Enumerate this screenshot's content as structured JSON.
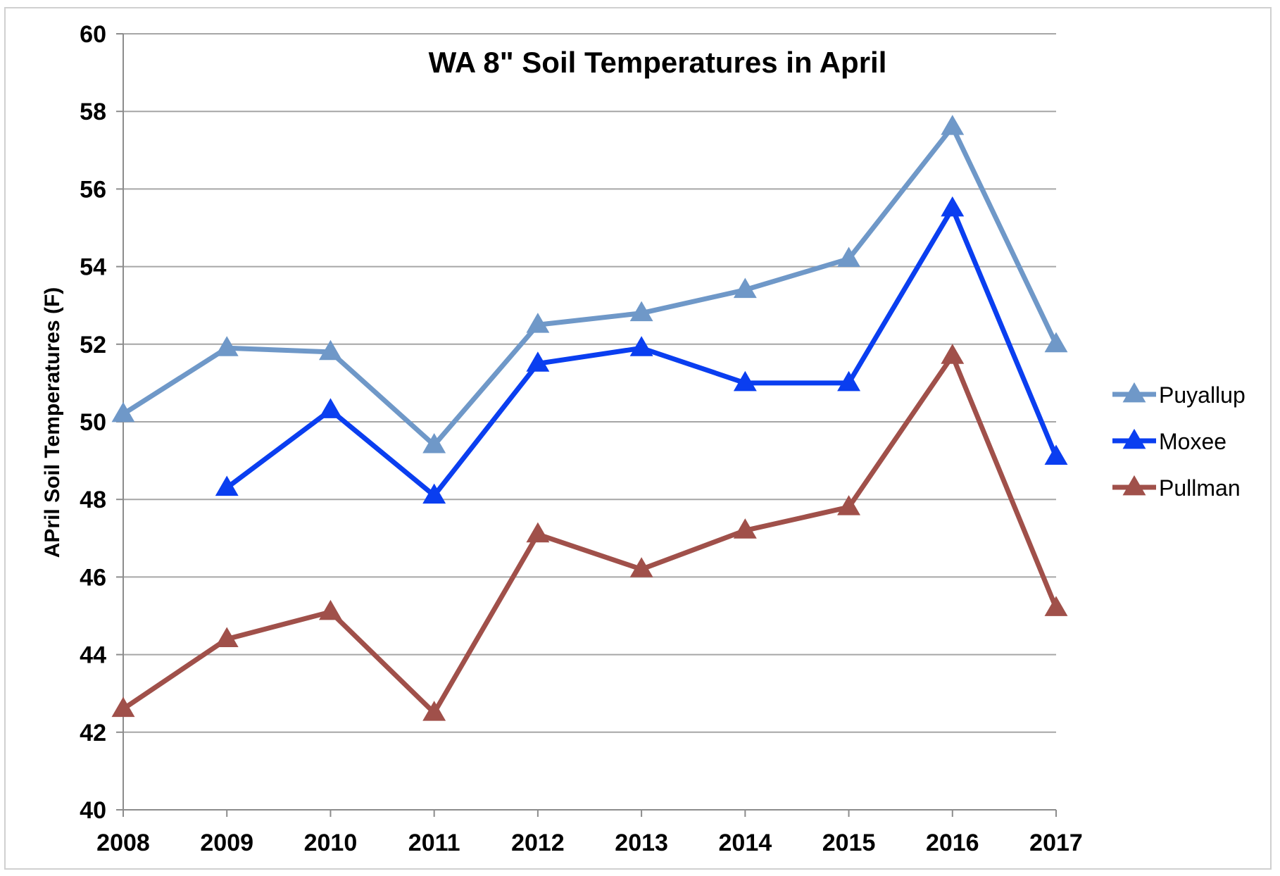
{
  "chart_data": {
    "type": "line",
    "title": "WA 8\" Soil Temperatures in April",
    "xlabel": "",
    "ylabel": "APril Soil Temperatures (F)",
    "categories": [
      "2008",
      "2009",
      "2010",
      "2011",
      "2012",
      "2013",
      "2014",
      "2015",
      "2016",
      "2017"
    ],
    "ylim": [
      40,
      60
    ],
    "yticks": [
      40,
      42,
      44,
      46,
      48,
      50,
      52,
      54,
      56,
      58,
      60
    ],
    "grid": true,
    "legend_position": "right",
    "series": [
      {
        "name": "Puyallup",
        "color": "#6f98c8",
        "marker": "triangle",
        "values": [
          50.2,
          51.9,
          51.8,
          49.4,
          52.5,
          52.8,
          53.4,
          54.2,
          57.6,
          52.0
        ]
      },
      {
        "name": "Moxee",
        "color": "#0a3ef0",
        "marker": "triangle",
        "values": [
          null,
          48.3,
          50.3,
          48.1,
          51.5,
          51.9,
          51.0,
          51.0,
          55.5,
          49.1
        ]
      },
      {
        "name": "Pullman",
        "color": "#a0504a",
        "marker": "triangle",
        "values": [
          42.6,
          44.4,
          45.1,
          42.5,
          47.1,
          46.2,
          47.2,
          47.8,
          51.7,
          45.2
        ]
      }
    ]
  }
}
